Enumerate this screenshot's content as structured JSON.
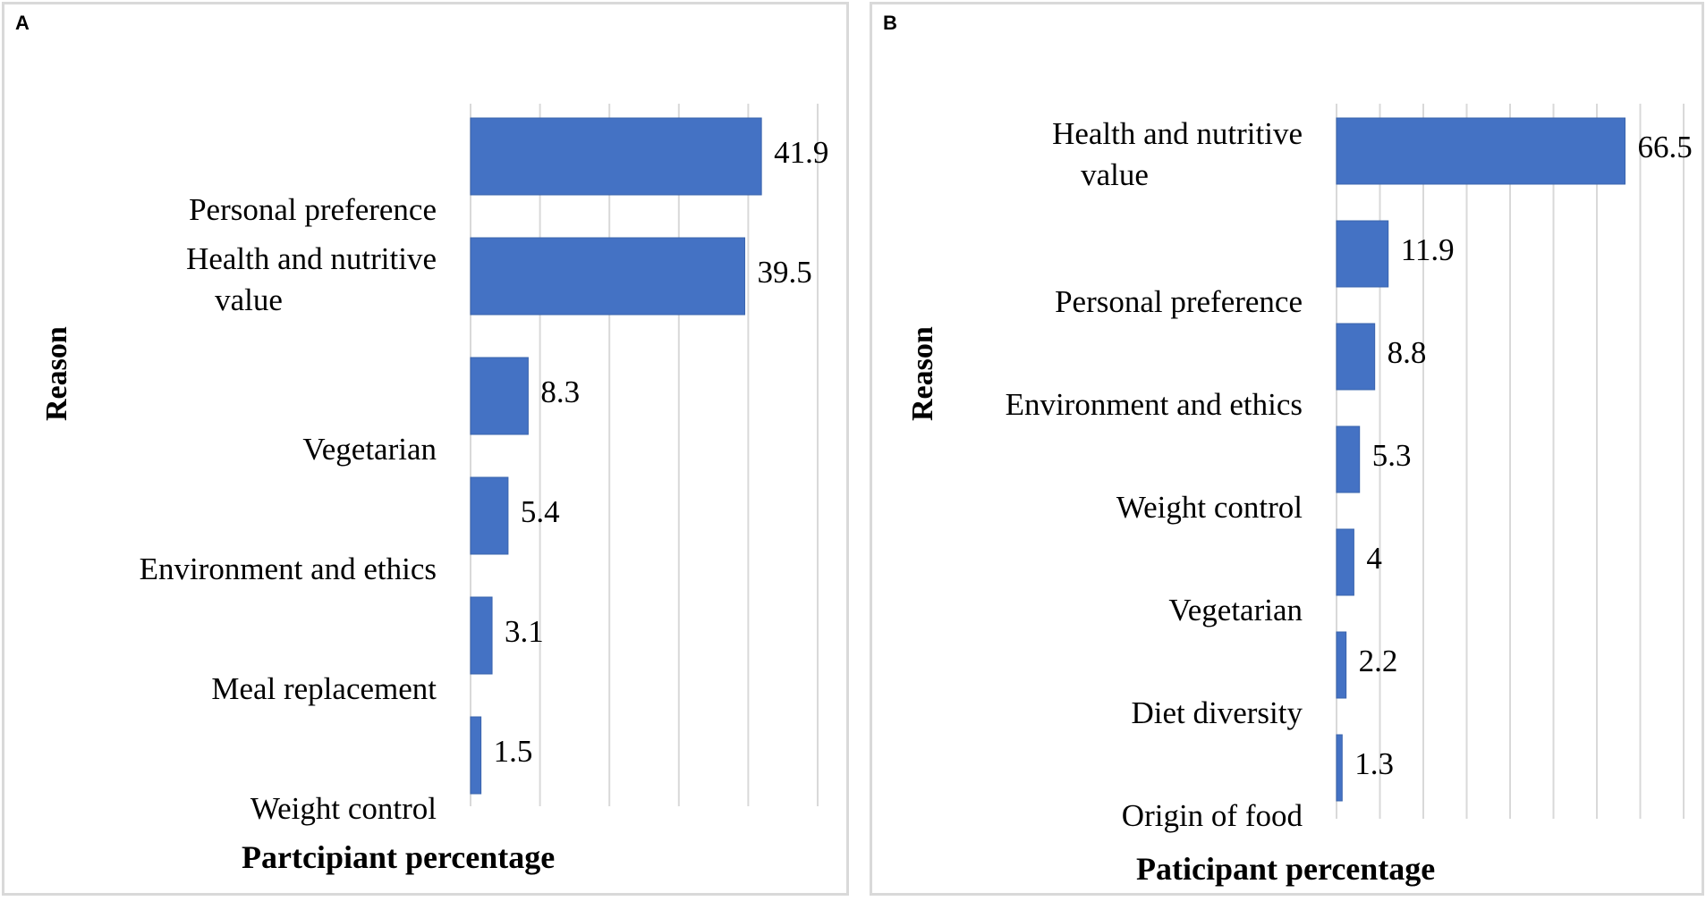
{
  "chart_data": [
    {
      "panel": "A",
      "type": "bar",
      "orientation": "horizontal",
      "categories": [
        "Personal preference",
        "Health and nutritive value",
        "Vegetarian",
        "Environment and ethics",
        "Meal replacement",
        "Weight control"
      ],
      "values": [
        41.9,
        39.5,
        8.3,
        5.4,
        3.1,
        1.5
      ],
      "value_labels": [
        "41.9",
        "39.5",
        "8.3",
        "5.4",
        "3.1",
        "1.5"
      ],
      "xlabel": "Partcipiant percentage",
      "ylabel": "Reason",
      "xlim": [
        0,
        50
      ],
      "grid": true,
      "bar_color": "#4472c4"
    },
    {
      "panel": "B",
      "type": "bar",
      "orientation": "horizontal",
      "categories": [
        "Health and nutritive value",
        "Personal preference",
        "Environment and ethics",
        "Weight control",
        "Vegetarian",
        "Diet diversity",
        "Origin of food"
      ],
      "values": [
        66.5,
        11.9,
        8.8,
        5.3,
        4,
        2.2,
        1.3
      ],
      "value_labels": [
        "66.5",
        "11.9",
        "8.8",
        "5.3",
        "4",
        "2.2",
        "1.3"
      ],
      "xlabel": "Paticipant percentage",
      "ylabel": "Reason",
      "xlim": [
        0,
        80
      ],
      "grid": true,
      "bar_color": "#4472c4"
    }
  ]
}
